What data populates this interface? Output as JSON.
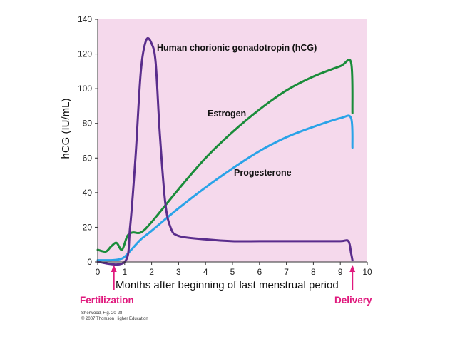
{
  "chart_data": {
    "type": "line",
    "title": "",
    "xlabel": "Months after beginning of last menstrual period",
    "ylabel": "hCG (IU/mL)",
    "xlim": [
      0,
      10
    ],
    "ylim": [
      0,
      140
    ],
    "x_ticks": [
      "0",
      "1",
      "2",
      "3",
      "4",
      "5",
      "6",
      "7",
      "8",
      "9",
      "10"
    ],
    "y_ticks": [
      "0",
      "20",
      "40",
      "60",
      "80",
      "100",
      "120",
      "140"
    ],
    "background": "#f5d9ec",
    "grid": false,
    "series": [
      {
        "name": "Human chorionic gonadotropin (hCG)",
        "color": "#5a2d8c",
        "x": [
          0,
          1.0,
          1.2,
          1.4,
          1.6,
          1.8,
          2.0,
          2.15,
          2.3,
          2.5,
          2.7,
          3.0,
          4,
          5,
          6,
          7,
          8,
          9,
          9.3,
          9.4,
          9.45
        ],
        "y": [
          0,
          0,
          20,
          60,
          110,
          128,
          126,
          115,
          75,
          35,
          20,
          15,
          13,
          12,
          12,
          12,
          12,
          12,
          12,
          5,
          1
        ]
      },
      {
        "name": "Estrogen",
        "color": "#1a8c3a",
        "x": [
          0,
          0.3,
          0.5,
          0.7,
          0.9,
          1.1,
          1.3,
          1.6,
          2,
          3,
          4,
          5,
          6,
          7,
          8,
          9,
          9.4,
          9.45
        ],
        "y": [
          7,
          6,
          9,
          11,
          7,
          15,
          17,
          17,
          23,
          42,
          60,
          75,
          88,
          99,
          107,
          113,
          115,
          86
        ]
      },
      {
        "name": "Progesterone",
        "color": "#2aa3e8",
        "x": [
          0,
          0.5,
          0.8,
          1.0,
          1.3,
          1.6,
          2,
          3,
          4,
          5,
          6,
          7,
          8,
          9,
          9.4,
          9.45
        ],
        "y": [
          1,
          1,
          1.5,
          3,
          8,
          13,
          18,
          31,
          43,
          54,
          64,
          72,
          78,
          83,
          83,
          66
        ]
      }
    ],
    "annotations": {
      "hcg": "Human chorionic gonadotropin (hCG)",
      "estrogen": "Estrogen",
      "progesterone": "Progesterone"
    },
    "markers": [
      {
        "label": "Fertilization",
        "x": 0.6,
        "color": "#e0197d"
      },
      {
        "label": "Delivery",
        "x": 9.45,
        "color": "#e0197d"
      }
    ]
  },
  "credit": {
    "line1": "Sherwood, Fig. 20-28",
    "line2": "© 2007 Thomson Higher Education"
  }
}
